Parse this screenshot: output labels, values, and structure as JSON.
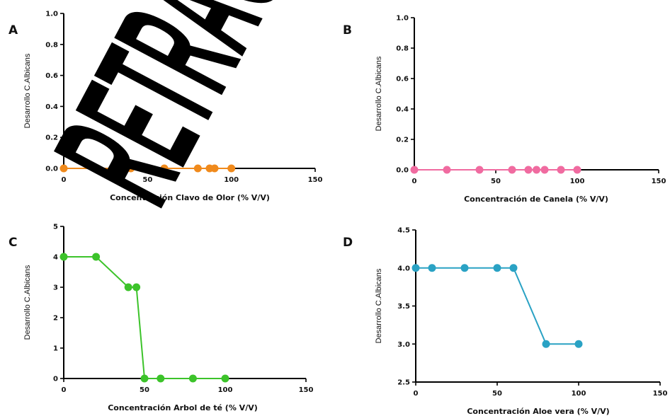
{
  "chart_data": [
    {
      "panel_label": "A",
      "type": "line",
      "xlabel": "Concentración Clavo de Olor (% V/V)",
      "ylabel": "Desarrollo C.Albicans",
      "xlim": [
        0,
        150
      ],
      "ylim": [
        0,
        1.0
      ],
      "xticks": [
        "0",
        "50",
        "100",
        "150"
      ],
      "yticks": [
        "0.0",
        "0.2",
        "0.4",
        "0.6",
        "0.8",
        "1.0"
      ],
      "color": "#f08a1c",
      "x": [
        0,
        20,
        40,
        60,
        80,
        87,
        90,
        100
      ],
      "y": [
        0,
        0,
        0,
        0,
        0,
        0,
        0,
        0
      ]
    },
    {
      "panel_label": "B",
      "type": "line",
      "xlabel": "Concentración  de Canela (% V/V)",
      "ylabel": "Desarrollo C.Albicans",
      "xlim": [
        0,
        150
      ],
      "ylim": [
        0,
        1.0
      ],
      "xticks": [
        "0",
        "50",
        "100",
        "150"
      ],
      "yticks": [
        "0.0",
        "0.2",
        "0.4",
        "0.6",
        "0.8",
        "1.0"
      ],
      "color": "#f06ba0",
      "x": [
        0,
        20,
        40,
        60,
        70,
        75,
        80,
        90,
        100
      ],
      "y": [
        0,
        0,
        0,
        0,
        0,
        0,
        0,
        0,
        0
      ]
    },
    {
      "panel_label": "C",
      "type": "line",
      "xlabel": "Concentración Arbol de té (% V/V)",
      "ylabel": "Desarrollo C.Albicans",
      "xlim": [
        0,
        150
      ],
      "ylim": [
        0,
        5
      ],
      "xticks": [
        "0",
        "50",
        "100",
        "150"
      ],
      "yticks": [
        "0",
        "1",
        "2",
        "3",
        "4",
        "5"
      ],
      "color": "#3cc32a",
      "x": [
        0,
        20,
        40,
        45,
        50,
        60,
        80,
        100
      ],
      "y": [
        4,
        4,
        3,
        3,
        0,
        0,
        0,
        0
      ]
    },
    {
      "panel_label": "D",
      "type": "line",
      "xlabel": "Concentración Aloe vera (% V/V)",
      "ylabel": "Desarrollo C.Albicans",
      "xlim": [
        0,
        150
      ],
      "ylim": [
        2.5,
        4.5
      ],
      "xticks": [
        "0",
        "50",
        "100",
        "150"
      ],
      "yticks": [
        "2.5",
        "3.0",
        "3.5",
        "4.0",
        "4.5"
      ],
      "color": "#2aa2c4",
      "x": [
        0,
        10,
        30,
        50,
        60,
        80,
        100
      ],
      "y": [
        4,
        4,
        4,
        4,
        4,
        3,
        3
      ]
    }
  ],
  "watermark": {
    "text": "RETRACTED"
  }
}
